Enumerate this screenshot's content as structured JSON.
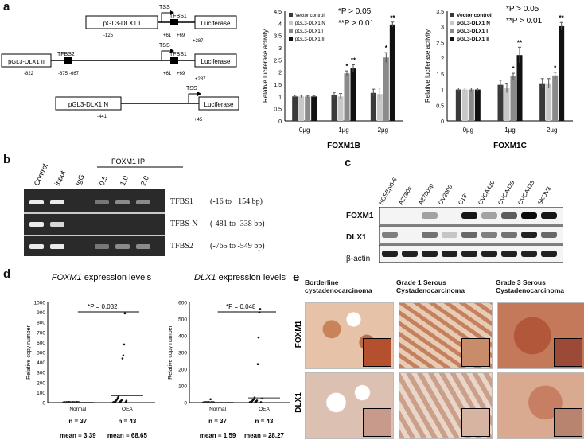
{
  "panel_labels": [
    "a",
    "b",
    "c",
    "d",
    "e"
  ],
  "panel_a": {
    "constructs": [
      {
        "name": "pGL3-DLX1 I",
        "sites": [
          "TSS",
          "TFBS1"
        ],
        "positions": [
          "-125",
          "+61",
          "+69",
          "+287"
        ],
        "reporter": "Luciferase"
      },
      {
        "name": "pGL3-DLX1 II",
        "sites": [
          "TFBS2",
          "TSS",
          "TFBS1"
        ],
        "positions": [
          "-822",
          "-675",
          "-667",
          "+61",
          "+69",
          "+287"
        ],
        "reporter": "Luciferase"
      },
      {
        "name": "pGL3-DLX1 N",
        "sites": [
          "TSS"
        ],
        "positions": [
          "-441",
          "+45"
        ],
        "reporter": "Luciferase"
      }
    ]
  },
  "panel_b": {
    "lanes": [
      "Control",
      "input",
      "IgG",
      "0.5",
      "1.0",
      "2.0"
    ],
    "ip_label": "FOXM1 IP",
    "rows": [
      {
        "label": "TFBS1",
        "range": "(-16  to +154 bp)"
      },
      {
        "label": "TFBS-N",
        "range": "(-481 to -338 bp)"
      },
      {
        "label": "TFBS2",
        "range": "(-765 to -549 bp)"
      }
    ]
  },
  "panel_c": {
    "lanes": [
      "HOSEpi6-6",
      "A2780s",
      "A2780cp",
      "OV2008",
      "C13*",
      "OVCA420",
      "OVCA429",
      "OVCA433",
      "SKOV3"
    ],
    "rows": [
      "FOXM1",
      "DLX1",
      "β-actin"
    ]
  },
  "panel_e": {
    "columns": [
      "Borderline cystadenocarcinoma",
      "Grade 1 Serous Cystadenocarcinoma",
      "Grade 3 Serous Cystadenocarcinoma"
    ],
    "rows": [
      "FOXM1",
      "DLX1"
    ]
  },
  "chart_data": [
    {
      "type": "bar",
      "title": "FOXM1B",
      "ylabel": "Relative luciferase activity",
      "ylim": [
        0,
        4.5
      ],
      "yticks": [
        "0",
        "0.5",
        "1",
        "1.5",
        "2",
        "2.5",
        "3",
        "3.5",
        "4",
        "4.5"
      ],
      "categories": [
        "0µg",
        "1µg",
        "2µg"
      ],
      "legend": [
        "Vector control",
        "pGL3-DLX1 N",
        "pGL3-DLX1 I",
        "pGL3-DLX1 II"
      ],
      "annotations": [
        "*P > 0.05",
        "**P > 0.01"
      ],
      "series": [
        {
          "name": "Vector control",
          "values": [
            1.0,
            1.05,
            1.15
          ],
          "err": [
            0.05,
            0.12,
            0.15
          ]
        },
        {
          "name": "pGL3-DLX1 N",
          "values": [
            1.0,
            1.0,
            1.1
          ],
          "err": [
            0.05,
            0.12,
            0.25
          ]
        },
        {
          "name": "pGL3-DLX1 I",
          "values": [
            1.0,
            1.95,
            2.6
          ],
          "err": [
            0.04,
            0.1,
            0.2
          ]
        },
        {
          "name": "pGL3-DLX1 II",
          "values": [
            1.0,
            2.15,
            3.95
          ],
          "err": [
            0.04,
            0.15,
            0.1
          ]
        }
      ],
      "stars": [
        [
          "",
          "",
          ""
        ],
        [
          "",
          "",
          ""
        ],
        [
          "",
          "*",
          "*"
        ],
        [
          "",
          "**",
          "**"
        ]
      ]
    },
    {
      "type": "bar",
      "title": "FOXM1C",
      "ylabel": "Relative luciferase activity",
      "ylim": [
        0,
        3.5
      ],
      "yticks": [
        "0",
        "0.5",
        "1",
        "1.5",
        "2",
        "2.5",
        "3",
        "3.5"
      ],
      "categories": [
        "0µg",
        "1µg",
        "2µg"
      ],
      "legend": [
        "Vector control",
        "pGL3-DLX1 N",
        "pGL3-DLX1 I",
        "pGL3-DLX1 II"
      ],
      "annotations": [
        "*P > 0.05",
        "**P > 0.01"
      ],
      "series": [
        {
          "name": "Vector control",
          "values": [
            1.0,
            1.15,
            1.2
          ],
          "err": [
            0.05,
            0.15,
            0.15
          ]
        },
        {
          "name": "pGL3-DLX1 N",
          "values": [
            1.0,
            1.05,
            1.2
          ],
          "err": [
            0.05,
            0.15,
            0.15
          ]
        },
        {
          "name": "pGL3-DLX1 I",
          "values": [
            1.0,
            1.42,
            1.45
          ],
          "err": [
            0.05,
            0.1,
            0.1
          ]
        },
        {
          "name": "pGL3-DLX1 II",
          "values": [
            1.0,
            2.1,
            3.02
          ],
          "err": [
            0.05,
            0.25,
            0.12
          ]
        }
      ],
      "stars": [
        [
          "",
          "",
          ""
        ],
        [
          "",
          "",
          ""
        ],
        [
          "",
          "*",
          "*"
        ],
        [
          "",
          "**",
          "**"
        ]
      ]
    },
    {
      "type": "scatter",
      "title_gene": "FOXM1",
      "title_rest": " expression levels",
      "ylabel": "Relative copy number",
      "ylim": [
        0,
        1000
      ],
      "yticks": [
        "0",
        "100",
        "200",
        "300",
        "400",
        "500",
        "600",
        "700",
        "800",
        "900",
        "1000"
      ],
      "categories": [
        "Normal",
        "OEA"
      ],
      "pvalue": "*P = 0.032",
      "n": [
        "n = 37",
        "n = 43"
      ],
      "mean": [
        "mean = 3.39",
        "mean = 68.65"
      ],
      "mean_values": [
        3.39,
        68.65
      ],
      "points": {
        "Normal": [
          2,
          3,
          4,
          1,
          5,
          3,
          2,
          6,
          4,
          3,
          2,
          1,
          5,
          3,
          4,
          2,
          3,
          6,
          2,
          4
        ],
        "OEA": [
          2,
          5,
          8,
          12,
          20,
          30,
          45,
          60,
          3,
          10,
          15,
          25,
          440,
          470,
          580,
          890,
          6,
          18
        ]
      }
    },
    {
      "type": "scatter",
      "title_gene": "DLX1",
      "title_rest": " expression levels",
      "ylabel": "Relative copy number",
      "ylim": [
        0,
        600
      ],
      "yticks": [
        "0",
        "100",
        "200",
        "300",
        "400",
        "500",
        "600"
      ],
      "categories": [
        "Normal",
        "OEA"
      ],
      "pvalue": "*P = 0.048",
      "n": [
        "n = 37",
        "n = 43"
      ],
      "mean": [
        "mean = 1.59",
        "mean = 28.27"
      ],
      "mean_values": [
        1.59,
        28.27
      ],
      "points": {
        "Normal": [
          1,
          2,
          1,
          3,
          2,
          1,
          4,
          2,
          1,
          20,
          2,
          3,
          1,
          2
        ],
        "OEA": [
          2,
          4,
          6,
          10,
          15,
          20,
          30,
          5,
          8,
          12,
          230,
          390,
          540,
          560,
          3,
          25
        ]
      }
    }
  ]
}
